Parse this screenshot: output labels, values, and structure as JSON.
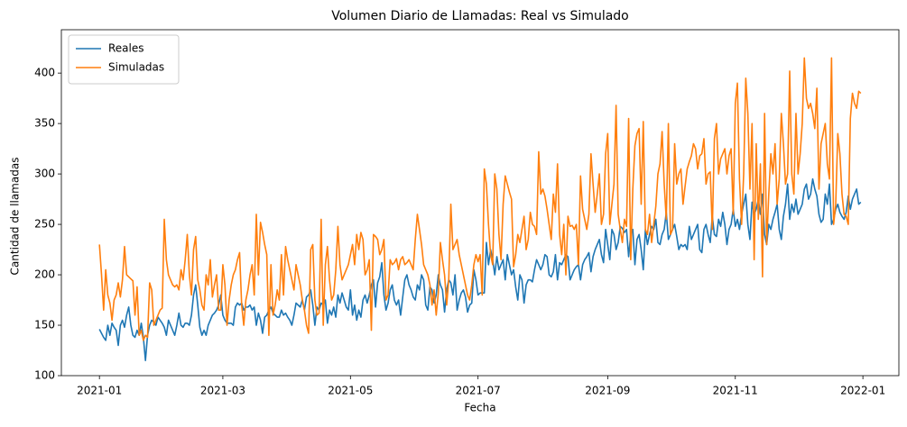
{
  "chart_data": {
    "type": "line",
    "title": "Volumen Diario de Llamadas: Real vs Simulado",
    "xlabel": "Fecha",
    "ylabel": "Cantidad de llamadas",
    "x": [
      0,
      1,
      2,
      3,
      4,
      5,
      6,
      7,
      8,
      9,
      10,
      11,
      12,
      13,
      14,
      15,
      16,
      17,
      18,
      19,
      20,
      21,
      22,
      23,
      24,
      25,
      26,
      27,
      28,
      29,
      30,
      31,
      32,
      33,
      34,
      35,
      36,
      37,
      38,
      39,
      40,
      41,
      42,
      43,
      44,
      45,
      46,
      47,
      48,
      49,
      50,
      51,
      52,
      53,
      54,
      55,
      56,
      57,
      58,
      59,
      60,
      61,
      62,
      63,
      64,
      65,
      66,
      67,
      68,
      69,
      70,
      71,
      72,
      73,
      74,
      75,
      76,
      77,
      78,
      79,
      80,
      81,
      82,
      83,
      84,
      85,
      86,
      87,
      88,
      89,
      90,
      91,
      92,
      93,
      94,
      95,
      96,
      97,
      98,
      99,
      100,
      101,
      102,
      103,
      104,
      105,
      106,
      107,
      108,
      109,
      110,
      111,
      112,
      113,
      114,
      115,
      116,
      117,
      118,
      119,
      120,
      121,
      122,
      123,
      124,
      125,
      126,
      127,
      128,
      129,
      130,
      131,
      132,
      133,
      134,
      135,
      136,
      137,
      138,
      139,
      140,
      141,
      142,
      143,
      144,
      145,
      146,
      147,
      148,
      149,
      150,
      151,
      152,
      153,
      154,
      155,
      156,
      157,
      158,
      159,
      160,
      161,
      162,
      163,
      164,
      165,
      166,
      167,
      168,
      169,
      170,
      171,
      172,
      173,
      174,
      175,
      176,
      177,
      178,
      179,
      180,
      181,
      182,
      183,
      184,
      185,
      186,
      187,
      188,
      189,
      190,
      191,
      192,
      193,
      194,
      195,
      196,
      197,
      198,
      199,
      200,
      201,
      202,
      203,
      204,
      205,
      206,
      207,
      208,
      209,
      210,
      211,
      212,
      213,
      214,
      215,
      216,
      217,
      218,
      219,
      220,
      221,
      222,
      223,
      224,
      225,
      226,
      227,
      228,
      229,
      230,
      231,
      232,
      233,
      234,
      235,
      236,
      237,
      238,
      239,
      240,
      241,
      242,
      243,
      244,
      245,
      246,
      247,
      248,
      249,
      250,
      251,
      252,
      253,
      254,
      255,
      256,
      257,
      258,
      259,
      260,
      261,
      262,
      263,
      264,
      265,
      266,
      267,
      268,
      269,
      270,
      271,
      272,
      273,
      274,
      275,
      276,
      277,
      278,
      279,
      280,
      281,
      282,
      283,
      284,
      285,
      286,
      287,
      288,
      289,
      290,
      291,
      292,
      293,
      294,
      295,
      296,
      297,
      298,
      299,
      300,
      301,
      302,
      303,
      304,
      305,
      306,
      307,
      308,
      309,
      310,
      311,
      312,
      313,
      314,
      315,
      316,
      317,
      318,
      319,
      320,
      321,
      322,
      323,
      324,
      325,
      326,
      327,
      328,
      329,
      330,
      331,
      332,
      333,
      334,
      335,
      336,
      337,
      338,
      339,
      340,
      341,
      342,
      343,
      344,
      345,
      346,
      347,
      348,
      349,
      350,
      351,
      352,
      353,
      354,
      355,
      356,
      357,
      358,
      359,
      360,
      361,
      362,
      363,
      364
    ],
    "series": [
      {
        "name": "Reales",
        "color": "#1f77b4",
        "values": [
          146,
          142,
          138,
          135,
          150,
          140,
          152,
          148,
          145,
          130,
          150,
          155,
          148,
          160,
          168,
          150,
          140,
          138,
          145,
          140,
          152,
          138,
          115,
          140,
          150,
          155,
          153,
          150,
          158,
          155,
          152,
          148,
          140,
          155,
          150,
          145,
          140,
          150,
          162,
          150,
          148,
          152,
          152,
          150,
          160,
          180,
          190,
          170,
          148,
          140,
          145,
          140,
          150,
          155,
          160,
          162,
          165,
          170,
          180,
          160,
          155,
          152,
          152,
          152,
          150,
          168,
          172,
          170,
          172,
          165,
          168,
          168,
          170,
          165,
          168,
          150,
          162,
          155,
          142,
          158,
          160,
          165,
          168,
          162,
          160,
          158,
          158,
          165,
          160,
          162,
          158,
          155,
          150,
          160,
          172,
          170,
          168,
          175,
          165,
          178,
          180,
          185,
          170,
          150,
          168,
          165,
          172,
          170,
          175,
          152,
          165,
          160,
          168,
          158,
          180,
          172,
          182,
          175,
          168,
          165,
          185,
          160,
          170,
          155,
          165,
          158,
          175,
          180,
          172,
          180,
          190,
          195,
          168,
          192,
          198,
          212,
          180,
          165,
          172,
          185,
          190,
          175,
          170,
          175,
          160,
          178,
          195,
          200,
          190,
          185,
          178,
          175,
          190,
          185,
          200,
          195,
          170,
          165,
          188,
          185,
          172,
          180,
          200,
          190,
          185,
          163,
          185,
          195,
          192,
          180,
          200,
          165,
          175,
          182,
          185,
          178,
          163,
          170,
          172,
          205,
          195,
          180,
          182,
          182,
          182,
          232,
          210,
          225,
          215,
          200,
          218,
          205,
          210,
          215,
          195,
          220,
          210,
          200,
          205,
          188,
          175,
          200,
          195,
          172,
          190,
          195,
          195,
          193,
          205,
          215,
          210,
          205,
          210,
          220,
          218,
          200,
          198,
          203,
          220,
          195,
          212,
          210,
          215,
          220,
          218,
          195,
          200,
          205,
          208,
          210,
          195,
          210,
          215,
          218,
          222,
          203,
          218,
          225,
          230,
          235,
          220,
          212,
          245,
          230,
          215,
          245,
          240,
          225,
          232,
          248,
          246,
          242,
          245,
          218,
          240,
          245,
          210,
          235,
          240,
          225,
          205,
          245,
          230,
          240,
          248,
          245,
          255,
          232,
          230,
          240,
          245,
          262,
          235,
          240,
          245,
          250,
          238,
          225,
          230,
          228,
          230,
          225,
          248,
          235,
          240,
          245,
          250,
          225,
          222,
          245,
          250,
          240,
          232,
          258,
          240,
          238,
          255,
          248,
          262,
          250,
          230,
          245,
          250,
          265,
          248,
          255,
          245,
          260,
          270,
          280,
          250,
          235,
          272,
          260,
          265,
          275,
          260,
          280,
          240,
          230,
          250,
          245,
          255,
          262,
          270,
          245,
          235,
          258,
          270,
          290,
          255,
          270,
          262,
          275,
          260,
          265,
          270,
          285,
          290,
          275,
          280,
          295,
          285,
          278,
          260,
          252,
          255,
          280,
          270,
          290,
          250,
          255,
          265,
          270,
          262,
          258,
          255,
          262,
          278,
          265,
          275,
          280,
          285,
          270,
          272
        ]
      },
      {
        "name": "Simuladas",
        "color": "#ff7f0e",
        "values": [
          230,
          200,
          165,
          205,
          180,
          172,
          155,
          175,
          180,
          192,
          178,
          195,
          228,
          200,
          198,
          196,
          194,
          160,
          188,
          140,
          145,
          135,
          140,
          138,
          192,
          185,
          150,
          155,
          160,
          165,
          167,
          255,
          215,
          200,
          195,
          190,
          188,
          190,
          185,
          205,
          195,
          215,
          240,
          200,
          180,
          225,
          238,
          195,
          185,
          170,
          165,
          200,
          190,
          215,
          178,
          190,
          200,
          165,
          165,
          210,
          190,
          150,
          175,
          190,
          200,
          205,
          215,
          222,
          170,
          150,
          175,
          185,
          200,
          210,
          180,
          260,
          200,
          252,
          242,
          230,
          220,
          140,
          210,
          160,
          170,
          185,
          175,
          220,
          180,
          228,
          215,
          205,
          195,
          185,
          210,
          200,
          190,
          175,
          165,
          150,
          142,
          225,
          230,
          175,
          160,
          162,
          255,
          150,
          210,
          228,
          195,
          175,
          180,
          205,
          248,
          210,
          195,
          200,
          205,
          210,
          220,
          230,
          210,
          240,
          225,
          242,
          235,
          200,
          205,
          215,
          145,
          240,
          238,
          235,
          220,
          225,
          235,
          175,
          180,
          215,
          210,
          212,
          216,
          205,
          215,
          218,
          210,
          212,
          215,
          210,
          205,
          235,
          260,
          245,
          230,
          210,
          205,
          200,
          190,
          170,
          185,
          160,
          182,
          232,
          215,
          200,
          170,
          195,
          270,
          225,
          230,
          235,
          220,
          210,
          200,
          190,
          180,
          175,
          190,
          210,
          220,
          213,
          220,
          180,
          305,
          290,
          250,
          220,
          210,
          300,
          285,
          240,
          215,
          270,
          298,
          290,
          282,
          275,
          208,
          220,
          240,
          232,
          245,
          258,
          225,
          235,
          262,
          250,
          248,
          240,
          322,
          280,
          285,
          278,
          265,
          250,
          235,
          280,
          262,
          310,
          240,
          220,
          250,
          200,
          258,
          248,
          249,
          245,
          250,
          210,
          298,
          265,
          255,
          245,
          260,
          320,
          290,
          262,
          280,
          300,
          250,
          260,
          320,
          340,
          250,
          270,
          290,
          368,
          260,
          245,
          232,
          255,
          248,
          355,
          215,
          285,
          328,
          340,
          345,
          270,
          352,
          245,
          240,
          260,
          232,
          250,
          268,
          300,
          310,
          342,
          290,
          255,
          350,
          240,
          245,
          330,
          290,
          300,
          305,
          270,
          288,
          305,
          312,
          318,
          330,
          325,
          305,
          318,
          320,
          335,
          290,
          300,
          302,
          245,
          335,
          350,
          300,
          315,
          320,
          325,
          300,
          318,
          325,
          260,
          370,
          390,
          295,
          250,
          300,
          395,
          360,
          285,
          350,
          215,
          330,
          255,
          310,
          198,
          360,
          230,
          280,
          320,
          300,
          330,
          270,
          295,
          360,
          330,
          290,
          300,
          402,
          300,
          280,
          360,
          300,
          320,
          350,
          415,
          375,
          365,
          370,
          360,
          345,
          385,
          285,
          330,
          340,
          350,
          310,
          295,
          415,
          250,
          270,
          340,
          320,
          280,
          260,
          258,
          250,
          355,
          380,
          370,
          365,
          382,
          380
        ]
      }
    ],
    "xlim": [
      -18.2,
      382.2
    ],
    "xticks": [
      {
        "value": 0,
        "label": "2021-01"
      },
      {
        "value": 59,
        "label": "2021-03"
      },
      {
        "value": 120,
        "label": "2021-05"
      },
      {
        "value": 181,
        "label": "2021-07"
      },
      {
        "value": 243,
        "label": "2021-09"
      },
      {
        "value": 304,
        "label": "2021-11"
      },
      {
        "value": 365,
        "label": "2022-01"
      }
    ],
    "ylim": [
      100,
      443
    ],
    "yticks": [
      100,
      150,
      200,
      250,
      300,
      350,
      400
    ],
    "grid": false,
    "legend": "upper left"
  }
}
